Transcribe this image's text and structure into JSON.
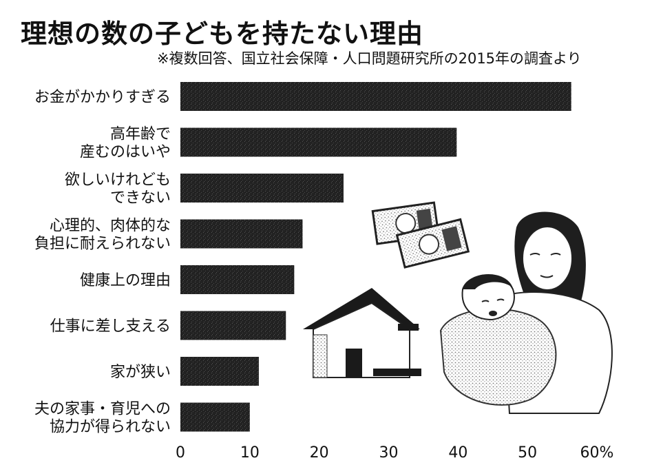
{
  "title": "理想の数の子どもを持たない理由",
  "subtitle": "※複数回答、国立社会保障・人口問題研究所の2015年の調査より",
  "chart_data": {
    "type": "bar",
    "orientation": "horizontal",
    "categories": [
      [
        "お金がかかりすぎる"
      ],
      [
        "高年齢で",
        "産むのはいや"
      ],
      [
        "欲しいけれども",
        "できない"
      ],
      [
        "心理的、肉体的な",
        "負担に耐えられない"
      ],
      [
        "健康上の理由"
      ],
      [
        "仕事に差し支える"
      ],
      [
        "家が狭い"
      ],
      [
        "夫の家事・育児への",
        "協力が得られない"
      ]
    ],
    "values": [
      56.3,
      39.8,
      23.5,
      17.6,
      16.4,
      15.2,
      11.3,
      10.0
    ],
    "xlim": [
      0,
      60
    ],
    "ticks": [
      "0",
      "10",
      "20",
      "30",
      "40",
      "50",
      "60%"
    ],
    "tick_values": [
      0,
      10,
      20,
      30,
      40,
      50,
      60
    ],
    "bar_color": "#222222"
  }
}
